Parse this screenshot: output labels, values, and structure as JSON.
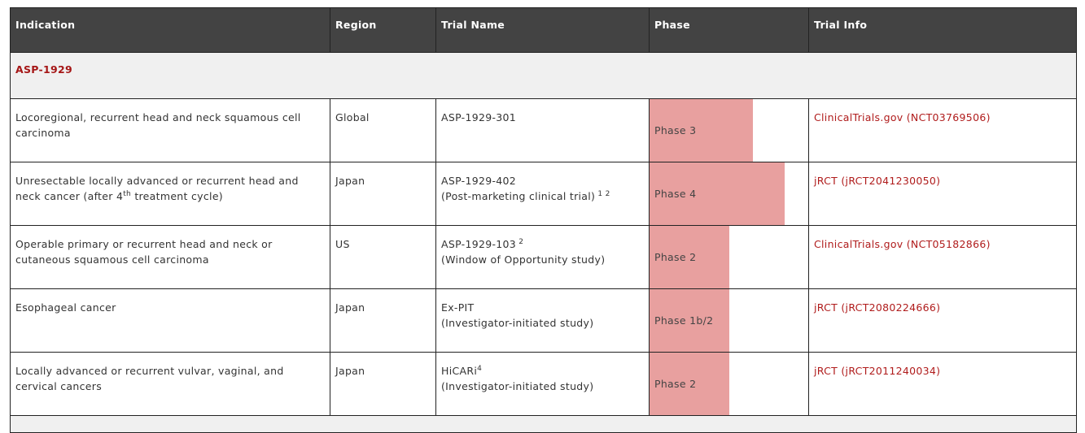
{
  "colors": {
    "header_bg": "#434343",
    "phase_bar": "#e8a09f",
    "link": "#b01c1c",
    "group_bg": "#f0f0f0"
  },
  "headers": [
    "Indication",
    "Region",
    "Trial Name",
    "Phase",
    "Trial Info"
  ],
  "group": "ASP-1929",
  "rows": [
    {
      "indication": "Locoregional, recurrent head and neck squamous cell carcinoma",
      "indication_sup": "",
      "indication_tail": "",
      "region": "Global",
      "trial": "ASP-1929-301",
      "trial_sup": "",
      "trial_sub": "",
      "phase": "Phase 3",
      "phase_fill": 0.65,
      "info": "ClinicalTrials.gov (NCT03769506)"
    },
    {
      "indication": "Unresectable locally advanced or recurrent head and neck cancer (after 4",
      "indication_sup": "th",
      "indication_tail": " treatment cycle)",
      "region": "Japan",
      "trial": "ASP-1929-402",
      "trial_sup": "",
      "trial_sub": "(Post-marketing clinical trial)",
      "trial_sub_sup": " 1 2",
      "phase": "Phase 4",
      "phase_fill": 0.85,
      "info": "jRCT (jRCT2041230050)"
    },
    {
      "indication": "Operable primary or recurrent head and neck or cutaneous squamous cell carcinoma",
      "indication_sup": "",
      "indication_tail": "",
      "region": "US",
      "trial": "ASP-1929-103",
      "trial_sup": " 2",
      "trial_sub": "(Window of Opportunity study)",
      "phase": "Phase 2",
      "phase_fill": 0.5,
      "info": "ClinicalTrials.gov (NCT05182866)"
    },
    {
      "indication": "Esophageal cancer",
      "indication_sup": "",
      "indication_tail": "",
      "region": "Japan",
      "trial": "Ex-PIT",
      "trial_sup": "",
      "trial_sub": "(Investigator-initiated study)",
      "phase": "Phase 1b/2",
      "phase_fill": 0.5,
      "info": "jRCT (jRCT2080224666)"
    },
    {
      "indication": "Locally advanced or recurrent vulvar, vaginal, and cervical cancers",
      "indication_sup": "",
      "indication_tail": "",
      "region": "Japan",
      "trial": "HiCARi",
      "trial_sup": "4",
      "trial_sub": "(Investigator-initiated study)",
      "phase": "Phase 2",
      "phase_fill": 0.5,
      "info": "jRCT (jRCT2011240034)"
    }
  ]
}
